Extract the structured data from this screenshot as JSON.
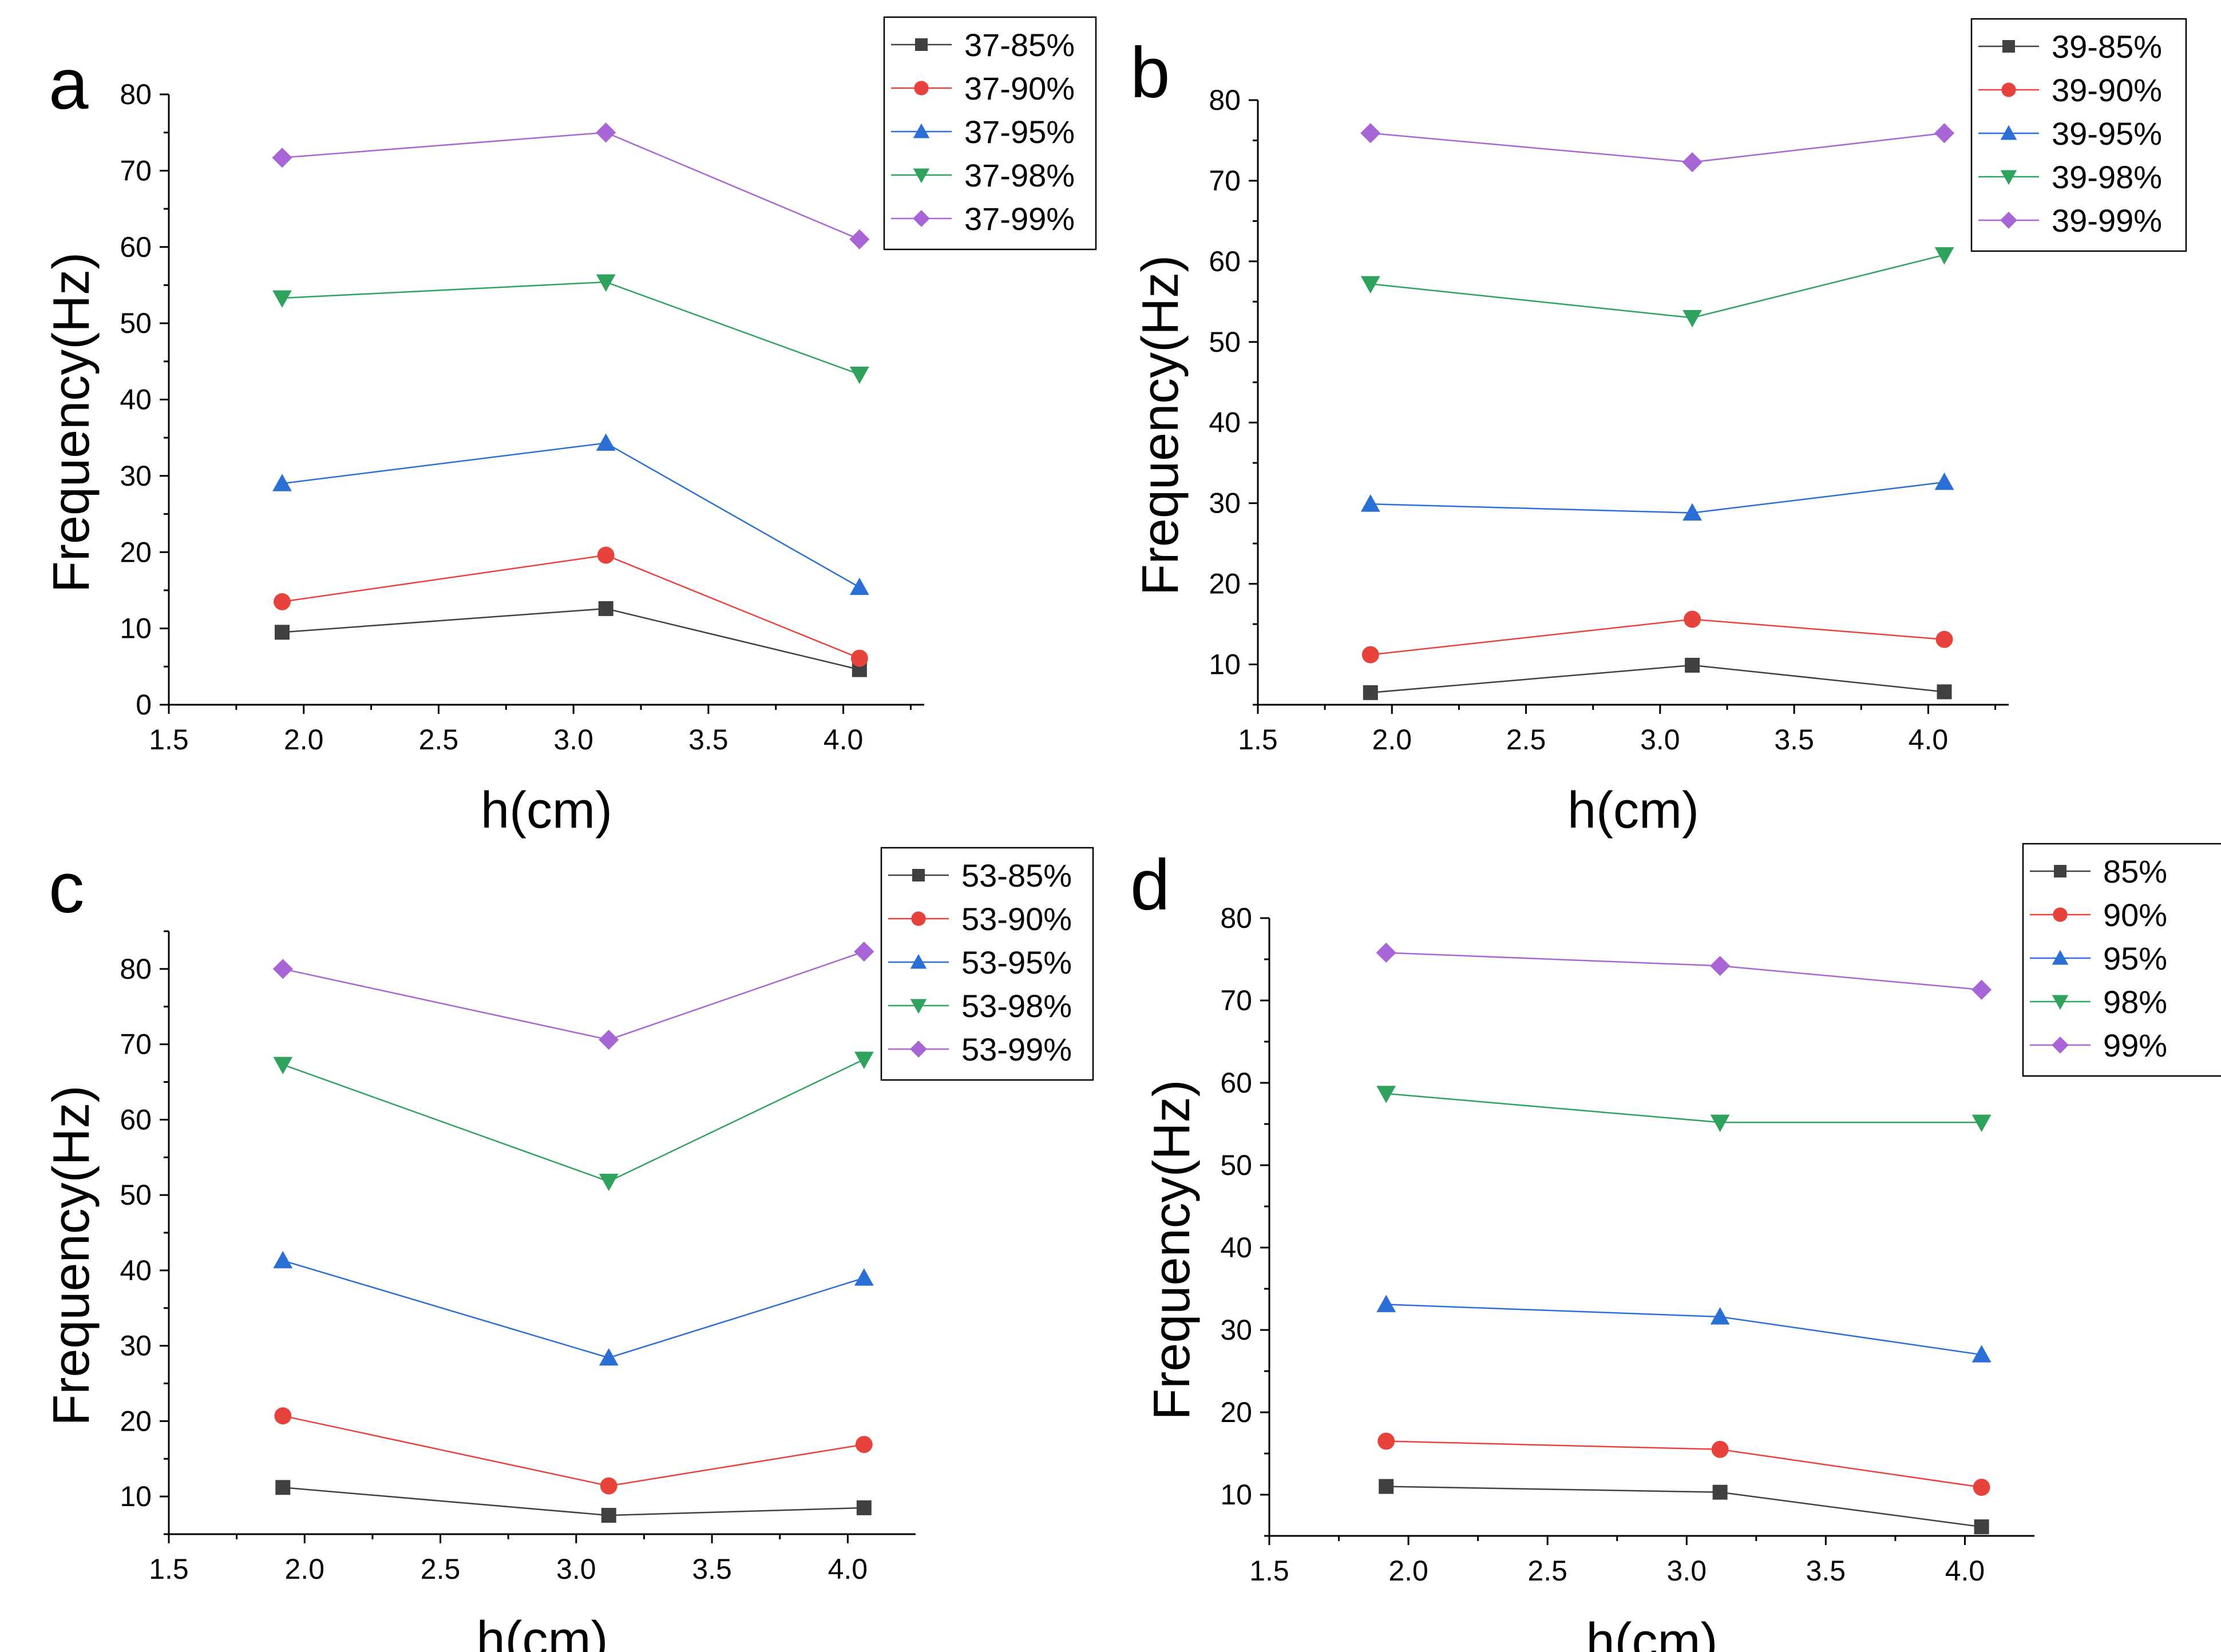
{
  "chart_data": [
    {
      "type": "line",
      "panel_label": "a",
      "xlabel": "h(cm)",
      "ylabel": "Frequency(Hz)",
      "xlim": [
        1.5,
        4.3
      ],
      "ylim": [
        0,
        80
      ],
      "xticks": [
        "1.5",
        "2.0",
        "2.5",
        "3.0",
        "3.5",
        "4.0"
      ],
      "yticks": [
        "0",
        "10",
        "20",
        "30",
        "40",
        "50",
        "60",
        "70",
        "80"
      ],
      "x": [
        1.92,
        3.12,
        4.06
      ],
      "legend_position": "top-right",
      "series": [
        {
          "name": "37-85%",
          "color": "#404040",
          "marker": "square",
          "values": [
            9.5,
            12.6,
            4.6
          ]
        },
        {
          "name": "37-90%",
          "color": "#e8423d",
          "marker": "circle",
          "values": [
            13.5,
            19.6,
            6.1
          ]
        },
        {
          "name": "37-95%",
          "color": "#2a6fd6",
          "marker": "triangle-up",
          "values": [
            29.0,
            34.3,
            15.4
          ]
        },
        {
          "name": "37-98%",
          "color": "#2fa35e",
          "marker": "triangle-down",
          "values": [
            53.3,
            55.4,
            43.3
          ]
        },
        {
          "name": "37-99%",
          "color": "#a865d6",
          "marker": "diamond",
          "values": [
            71.7,
            75.0,
            61.0
          ]
        }
      ]
    },
    {
      "type": "line",
      "panel_label": "b",
      "xlabel": "h(cm)",
      "ylabel": "Frequency(Hz)",
      "xlim": [
        1.5,
        4.3
      ],
      "ylim": [
        5,
        80
      ],
      "xticks": [
        "1.5",
        "2.0",
        "2.5",
        "3.0",
        "3.5",
        "4.0"
      ],
      "yticks": [
        "10",
        "20",
        "30",
        "40",
        "50",
        "60",
        "70",
        "80"
      ],
      "x": [
        1.92,
        3.12,
        4.06
      ],
      "legend_position": "top-right",
      "series": [
        {
          "name": "39-85%",
          "color": "#404040",
          "marker": "square",
          "values": [
            6.5,
            9.9,
            6.6
          ]
        },
        {
          "name": "39-90%",
          "color": "#e8423d",
          "marker": "circle",
          "values": [
            11.2,
            15.6,
            13.1
          ]
        },
        {
          "name": "39-95%",
          "color": "#2a6fd6",
          "marker": "triangle-up",
          "values": [
            29.9,
            28.8,
            32.6
          ]
        },
        {
          "name": "39-98%",
          "color": "#2fa35e",
          "marker": "triangle-down",
          "values": [
            57.2,
            53.0,
            60.8
          ]
        },
        {
          "name": "39-99%",
          "color": "#a865d6",
          "marker": "diamond",
          "values": [
            75.9,
            72.3,
            75.9
          ]
        }
      ]
    },
    {
      "type": "line",
      "panel_label": "c",
      "xlabel": "h(cm)",
      "ylabel": "Frequency(Hz)",
      "xlim": [
        1.5,
        4.25
      ],
      "ylim": [
        5,
        85
      ],
      "xticks": [
        "1.5",
        "2.0",
        "2.5",
        "3.0",
        "3.5",
        "4.0"
      ],
      "yticks": [
        "10",
        "20",
        "30",
        "40",
        "50",
        "60",
        "70",
        "80"
      ],
      "x": [
        1.92,
        3.12,
        4.06
      ],
      "legend_position": "top-right",
      "series": [
        {
          "name": "53-85%",
          "color": "#404040",
          "marker": "square",
          "values": [
            11.2,
            7.5,
            8.5
          ]
        },
        {
          "name": "53-90%",
          "color": "#e8423d",
          "marker": "circle",
          "values": [
            20.7,
            11.4,
            16.9
          ]
        },
        {
          "name": "53-95%",
          "color": "#2a6fd6",
          "marker": "triangle-up",
          "values": [
            41.3,
            28.4,
            39.0
          ]
        },
        {
          "name": "53-98%",
          "color": "#2fa35e",
          "marker": "triangle-down",
          "values": [
            67.3,
            51.8,
            68.0
          ]
        },
        {
          "name": "53-99%",
          "color": "#a865d6",
          "marker": "diamond",
          "values": [
            80.0,
            70.6,
            82.3
          ]
        }
      ]
    },
    {
      "type": "line",
      "panel_label": "d",
      "xlabel": "h(cm)",
      "ylabel": "Frequency(Hz)",
      "xlim": [
        1.5,
        4.25
      ],
      "ylim": [
        5,
        80
      ],
      "xticks": [
        "1.5",
        "2.0",
        "2.5",
        "3.0",
        "3.5",
        "4.0"
      ],
      "yticks": [
        "10",
        "20",
        "30",
        "40",
        "50",
        "60",
        "70",
        "80"
      ],
      "x": [
        1.92,
        3.12,
        4.06
      ],
      "legend_position": "top-right",
      "series": [
        {
          "name": "85%",
          "color": "#404040",
          "marker": "square",
          "values": [
            11.0,
            10.3,
            6.1
          ]
        },
        {
          "name": "90%",
          "color": "#e8423d",
          "marker": "circle",
          "values": [
            16.5,
            15.5,
            10.9
          ]
        },
        {
          "name": "95%",
          "color": "#2a6fd6",
          "marker": "triangle-up",
          "values": [
            33.1,
            31.6,
            27.0
          ]
        },
        {
          "name": "98%",
          "color": "#2fa35e",
          "marker": "triangle-down",
          "values": [
            58.7,
            55.2,
            55.2
          ]
        },
        {
          "name": "99%",
          "color": "#a865d6",
          "marker": "diamond",
          "values": [
            75.8,
            74.2,
            71.3
          ]
        }
      ]
    }
  ]
}
